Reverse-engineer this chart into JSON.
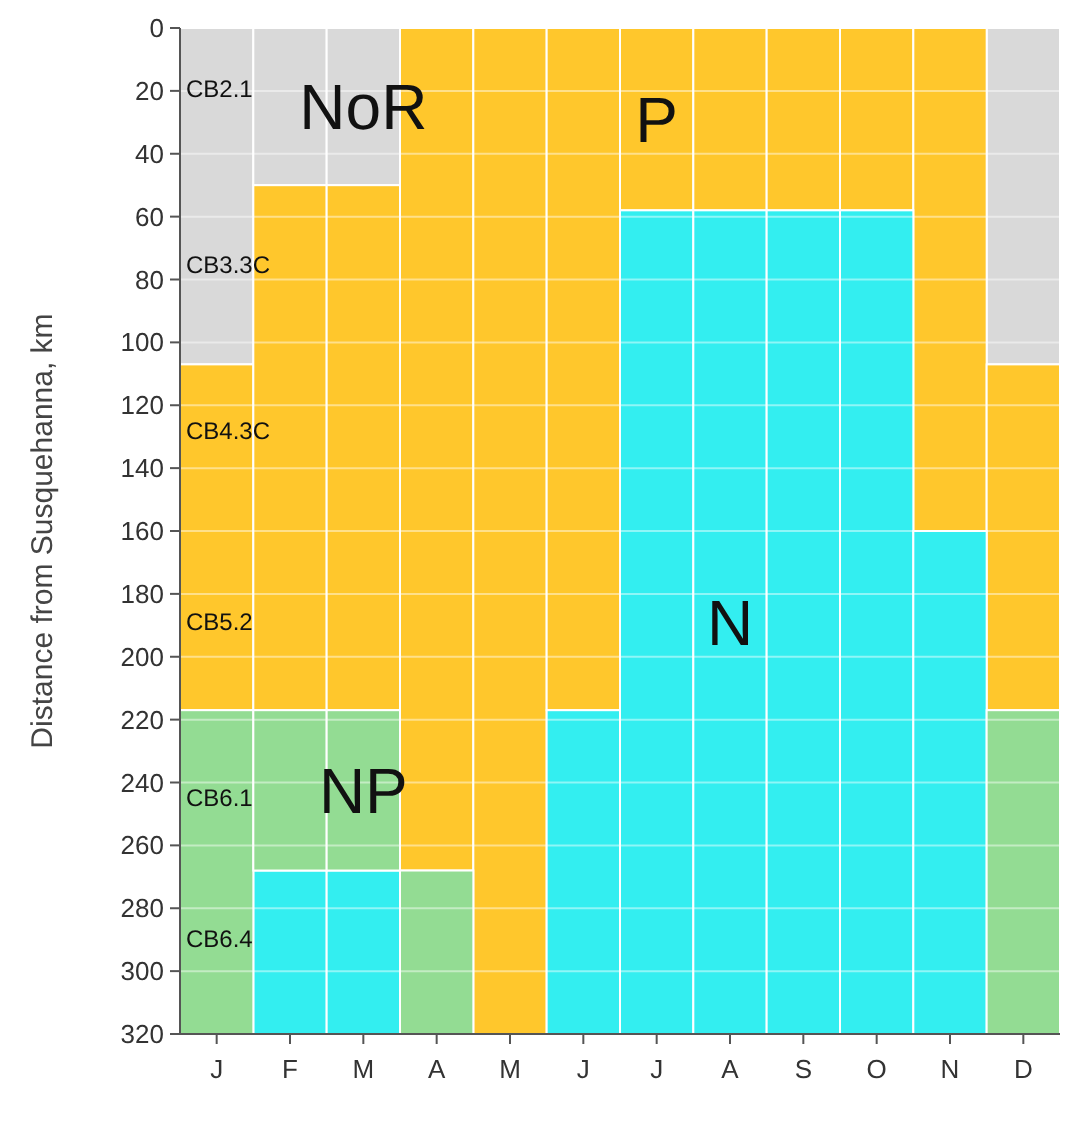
{
  "chart_data": {
    "type": "bar",
    "ylabel": "Distance from Susquehanna, km",
    "categories": [
      "J",
      "F",
      "M",
      "A",
      "M",
      "J",
      "J",
      "A",
      "S",
      "O",
      "N",
      "D"
    ],
    "series": [
      {
        "name": "NoR",
        "color": "#d9d9d9",
        "base": [
          0,
          0,
          0,
          null,
          null,
          null,
          null,
          null,
          null,
          null,
          null,
          0
        ],
        "values": [
          107,
          50,
          50,
          null,
          null,
          null,
          null,
          null,
          null,
          null,
          null,
          107
        ]
      },
      {
        "name": "P",
        "color": "#ffc72c",
        "base": [
          107,
          50,
          50,
          0,
          0,
          0,
          0,
          0,
          0,
          0,
          0,
          107
        ],
        "values": [
          110,
          167,
          167,
          268,
          320,
          217,
          58,
          58,
          58,
          58,
          160,
          110
        ]
      },
      {
        "name": "N",
        "color": "#33eef0",
        "base": [
          null,
          268,
          268,
          null,
          null,
          217,
          58,
          58,
          58,
          58,
          160,
          null
        ],
        "values": [
          null,
          52,
          52,
          null,
          null,
          103,
          262,
          262,
          262,
          262,
          160,
          null
        ]
      },
      {
        "name": "NP",
        "color": "#93dc93",
        "base": [
          217,
          217,
          217,
          268,
          null,
          null,
          null,
          null,
          null,
          null,
          null,
          217
        ],
        "values": [
          103,
          51,
          51,
          52,
          null,
          null,
          null,
          null,
          null,
          null,
          null,
          103
        ]
      }
    ],
    "ylim": [
      320,
      0
    ],
    "yticks": [
      0,
      20,
      40,
      60,
      80,
      100,
      120,
      140,
      160,
      180,
      200,
      220,
      240,
      260,
      280,
      300,
      320
    ],
    "grid": "y",
    "annotations": [
      "CB2.1",
      "CB3.3C",
      "CB4.3C",
      "CB5.2",
      "CB6.1",
      "CB6.4"
    ]
  }
}
